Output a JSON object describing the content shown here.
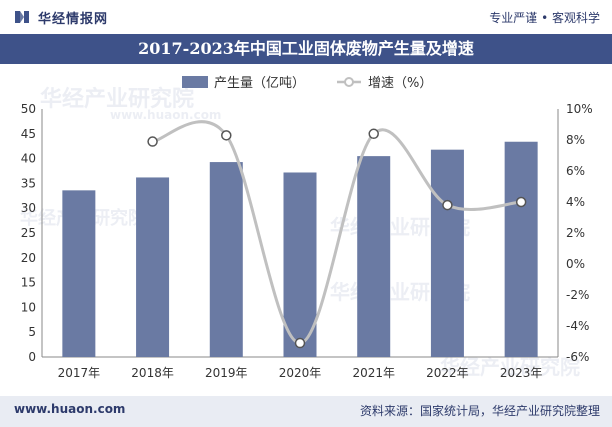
{
  "header": {
    "brand": "华经情报网",
    "tagline": "专业严谨 • 客观科学",
    "title": "2017-2023年中国工业固体废物产生量及增速"
  },
  "footer": {
    "website": "www.huaon.com",
    "source": "资料来源：国家统计局，华经产业研究院整理"
  },
  "watermark": {
    "name": "华经产业研究院",
    "url": "www.huaon.com"
  },
  "colors": {
    "bar": "#6a7aa3",
    "line": "#c0c0c0",
    "marker": "#ffffff",
    "header_band": "#3e5289"
  },
  "chart_data": {
    "type": "bar",
    "categories": [
      "2017年",
      "2018年",
      "2019年",
      "2020年",
      "2021年",
      "2022年",
      "2023年"
    ],
    "series": [
      {
        "name": "产生量（亿吨）",
        "type": "bar",
        "axis": "left",
        "values": [
          33.6,
          36.2,
          39.3,
          37.2,
          40.5,
          41.8,
          43.4
        ]
      },
      {
        "name": "增速（%）",
        "type": "line",
        "axis": "right",
        "values": [
          null,
          7.9,
          8.3,
          -5.1,
          8.4,
          3.8,
          4.0
        ]
      }
    ],
    "yleft": {
      "min": 0,
      "max": 50,
      "step": 5,
      "ticks": [
        "0",
        "5",
        "10",
        "15",
        "20",
        "25",
        "30",
        "35",
        "40",
        "45",
        "50"
      ]
    },
    "yright": {
      "min": -6,
      "max": 10,
      "step": 2,
      "ticks": [
        "-6%",
        "-4%",
        "-2%",
        "0%",
        "2%",
        "4%",
        "6%",
        "8%",
        "10%"
      ]
    },
    "legend_position": "top",
    "grid": false
  }
}
